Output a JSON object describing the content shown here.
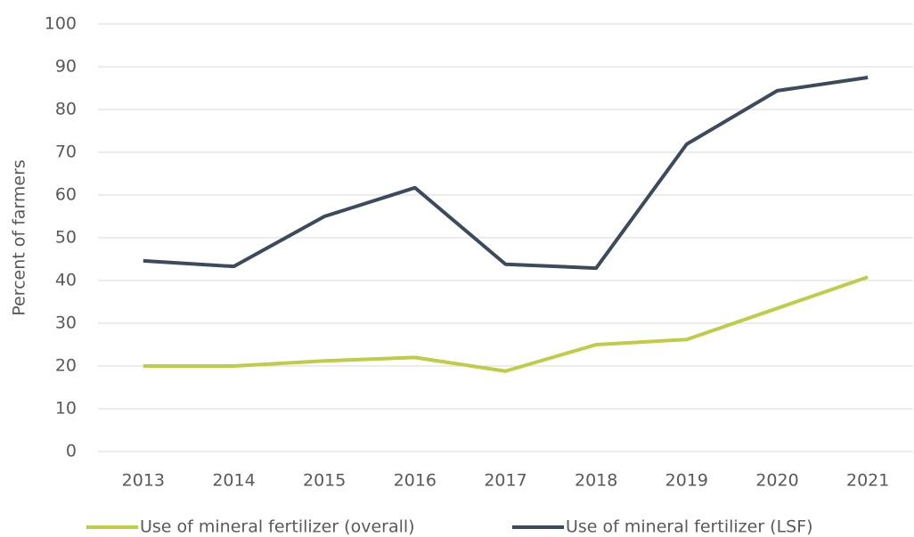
{
  "chart_data": {
    "type": "line",
    "y_label": "Percent of farmers",
    "categories": [
      "2013",
      "2014",
      "2015",
      "2016",
      "2017",
      "2018",
      "2019",
      "2020",
      "2021"
    ],
    "series": [
      {
        "name": "Use of mineral fertilizer (overall)",
        "color": "#bfcc45",
        "values": [
          20,
          20,
          21.2,
          22,
          18.8,
          25,
          26.2,
          33.5,
          40.8
        ]
      },
      {
        "name": "Use of mineral fertilizer (LSF)",
        "color": "#3d4a5c",
        "values": [
          44.6,
          43.3,
          55,
          61.7,
          43.8,
          42.9,
          71.9,
          84.4,
          87.5
        ]
      }
    ],
    "ylim": [
      0,
      100
    ],
    "yticks": [
      0,
      10,
      20,
      30,
      40,
      50,
      60,
      70,
      80,
      90,
      100
    ],
    "grid": true,
    "legend": "bottom"
  }
}
